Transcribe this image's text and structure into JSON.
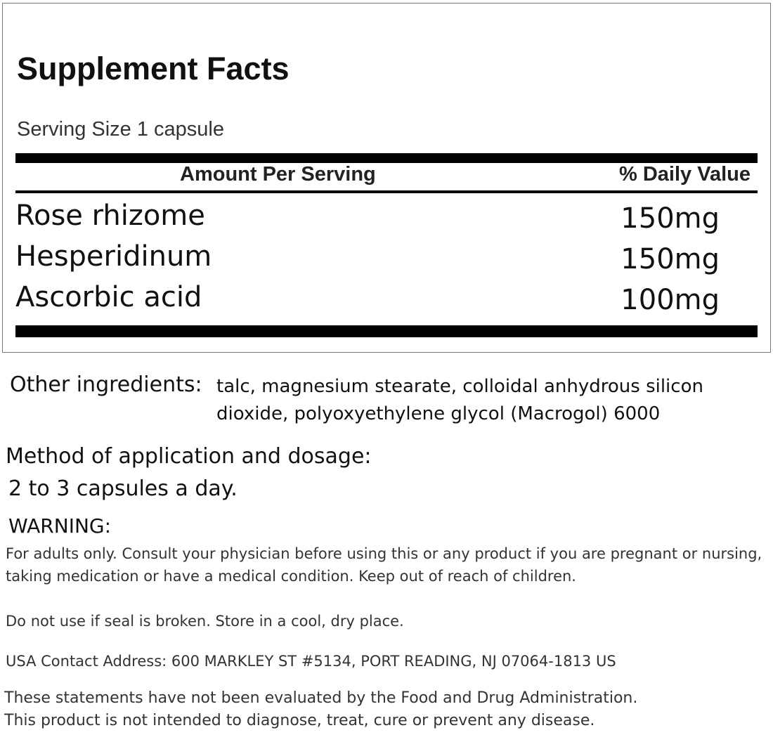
{
  "facts": {
    "title": "Supplement Facts",
    "serving_size": "Serving Size 1 capsule",
    "col_amount": "Amount Per Serving",
    "col_dv": "% Daily Value",
    "rows": [
      {
        "name": "Rose rhizome",
        "amount": "150mg"
      },
      {
        "name": "Hesperidinum",
        "amount": "150mg"
      },
      {
        "name": "Ascorbic acid",
        "amount": "100mg"
      }
    ]
  },
  "other": {
    "label": "Other ingredients:",
    "line1": "talc, magnesium stearate, colloidal anhydrous silicon",
    "line2": "dioxide, polyoxyethylene glycol (Macrogol) 6000"
  },
  "method": {
    "label": "Method of application and dosage:",
    "text": "2 to 3 capsules a day."
  },
  "warning": {
    "label": "WARNING:",
    "line1": "For adults only. Consult your physician before using this or any product if you are pregnant or nursing,",
    "line2": "taking medication or have a medical condition. Keep out of reach of children.",
    "line3": "Do not use if seal is broken. Store in a cool, dry place."
  },
  "contact": {
    "label": "USA Contact Address:",
    "address": "600 MARKLEY ST #5134, PORT READING, NJ 07064-1813 US"
  },
  "disclaimer": {
    "line1": "These statements have not been evaluated by the Food and Drug Administration.",
    "line2": "This product is not intended to diagnose, treat, cure or prevent any disease."
  }
}
